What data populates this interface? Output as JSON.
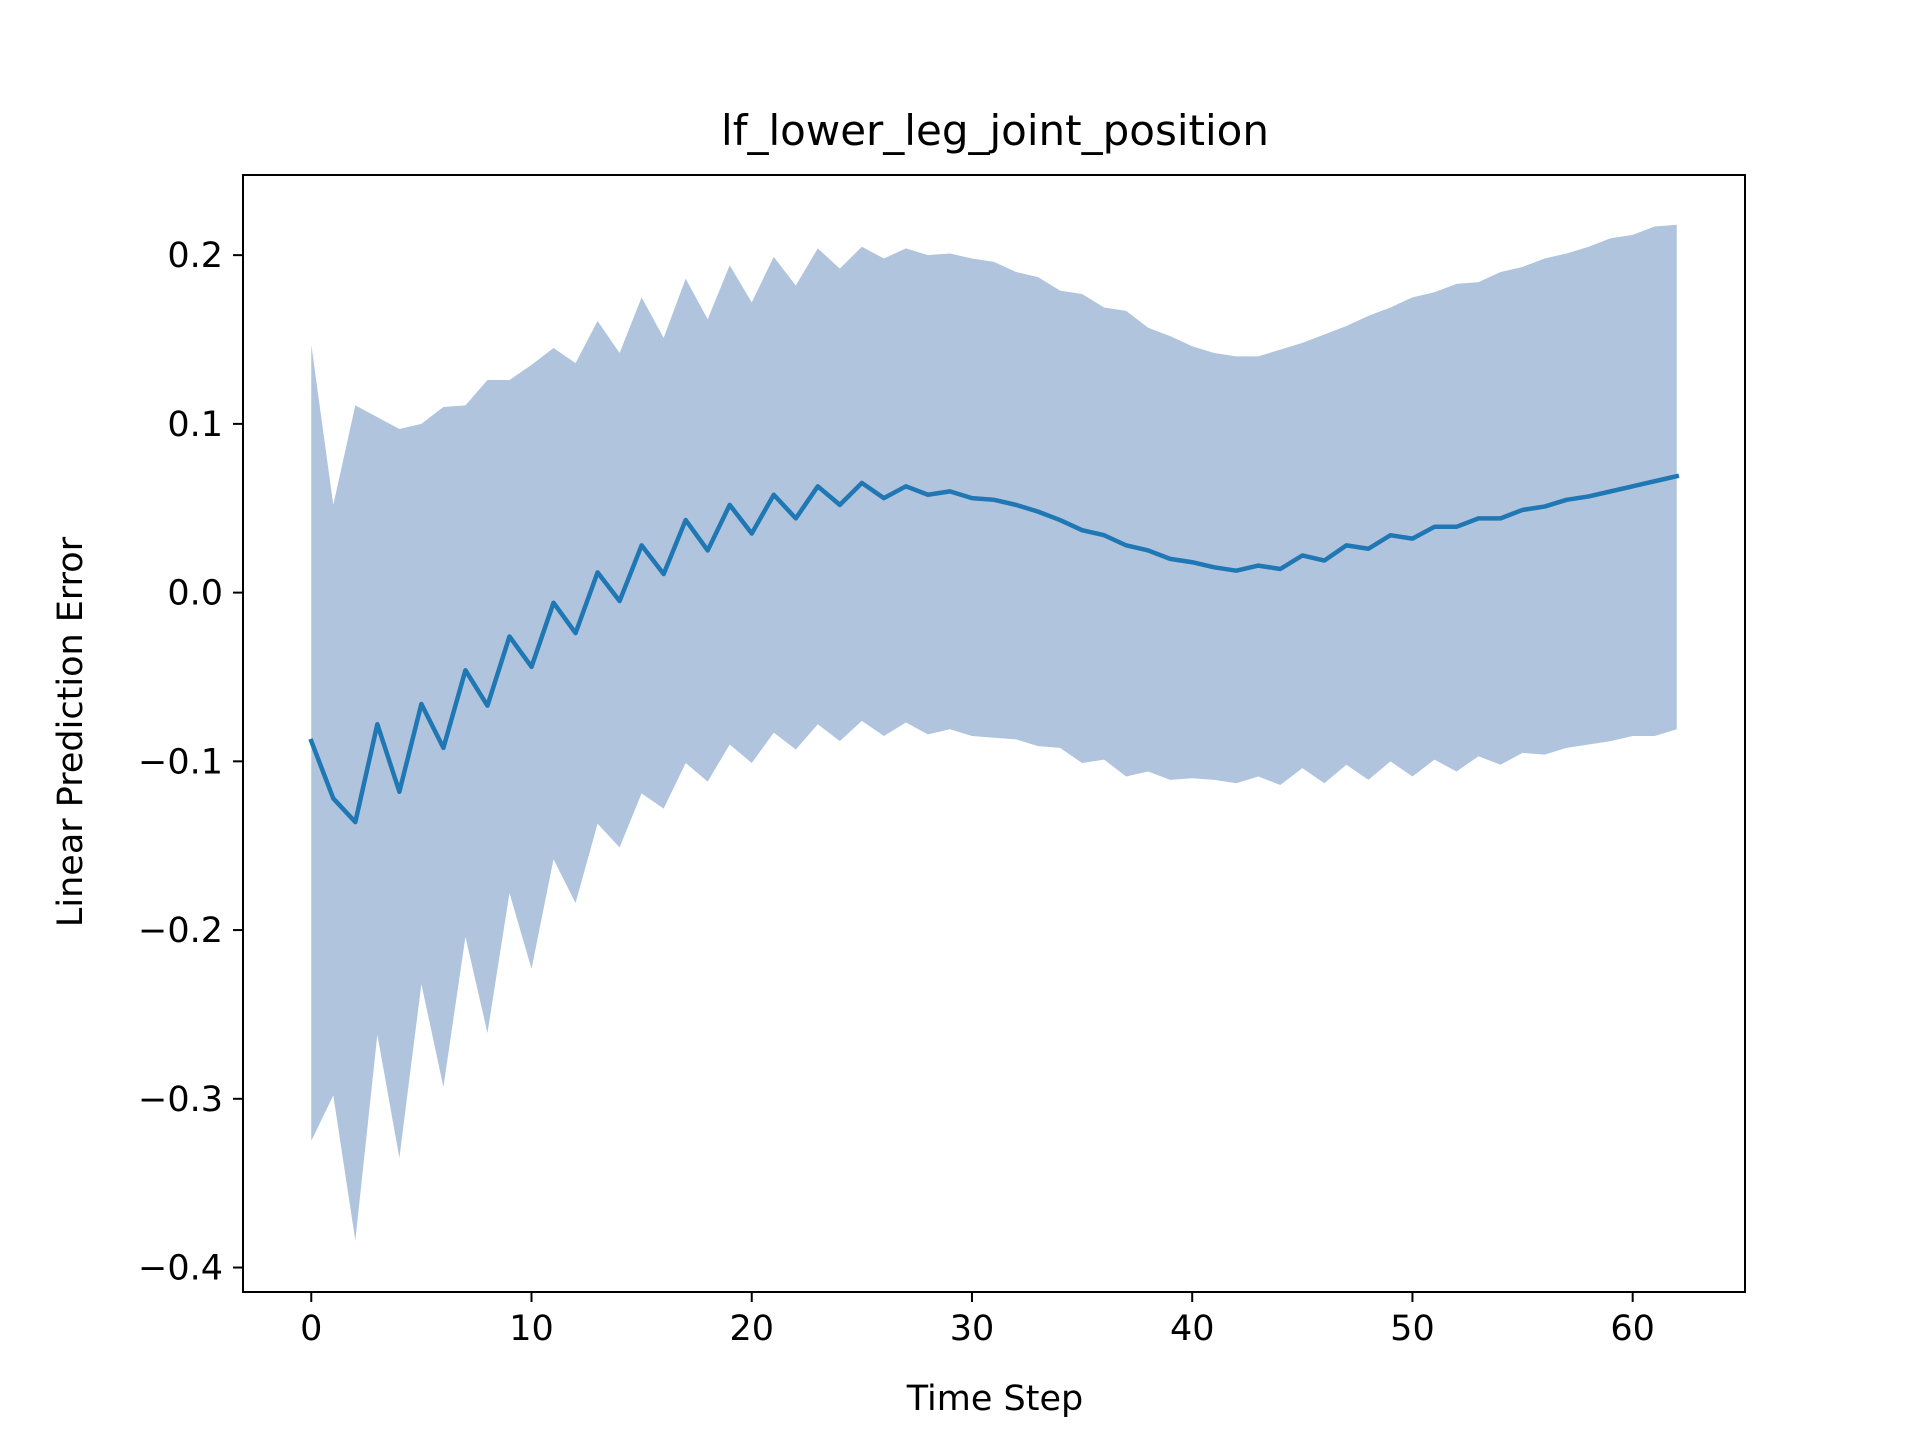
{
  "chart_data": {
    "type": "line",
    "title": "lf_lower_leg_joint_position",
    "xlabel": "Time Step",
    "ylabel": "Linear Prediction Error",
    "xlim": [
      -3.1,
      65.1
    ],
    "ylim": [
      -0.4145,
      0.2475
    ],
    "xticks": [
      0,
      10,
      20,
      30,
      40,
      50,
      60
    ],
    "xtick_labels": [
      "0",
      "10",
      "20",
      "30",
      "40",
      "50",
      "60"
    ],
    "yticks": [
      -0.4,
      -0.3,
      -0.2,
      -0.1,
      0.0,
      0.1,
      0.2
    ],
    "ytick_labels": [
      "−0.4",
      "−0.3",
      "−0.2",
      "−0.1",
      "0.0",
      "0.1",
      "0.2"
    ],
    "grid": false,
    "colors": {
      "line": "#1f77b4",
      "band": "#b0c4de"
    },
    "x": [
      0,
      1,
      2,
      3,
      4,
      5,
      6,
      7,
      8,
      9,
      10,
      11,
      12,
      13,
      14,
      15,
      16,
      17,
      18,
      19,
      20,
      21,
      22,
      23,
      24,
      25,
      26,
      27,
      28,
      29,
      30,
      31,
      32,
      33,
      34,
      35,
      36,
      37,
      38,
      39,
      40,
      41,
      42,
      43,
      44,
      45,
      46,
      47,
      48,
      49,
      50,
      51,
      52,
      53,
      54,
      55,
      56,
      57,
      58,
      59,
      60,
      61,
      62
    ],
    "series": [
      {
        "type": "band",
        "upper": [
          0.147,
          0.052,
          0.111,
          0.104,
          0.097,
          0.1,
          0.11,
          0.111,
          0.126,
          0.126,
          0.135,
          0.145,
          0.136,
          0.161,
          0.142,
          0.175,
          0.151,
          0.186,
          0.162,
          0.194,
          0.172,
          0.199,
          0.182,
          0.204,
          0.192,
          0.205,
          0.198,
          0.204,
          0.2,
          0.201,
          0.198,
          0.196,
          0.19,
          0.187,
          0.179,
          0.177,
          0.169,
          0.167,
          0.157,
          0.152,
          0.146,
          0.142,
          0.14,
          0.14,
          0.144,
          0.148,
          0.153,
          0.158,
          0.164,
          0.169,
          0.175,
          0.178,
          0.183,
          0.184,
          0.19,
          0.193,
          0.198,
          0.201,
          0.205,
          0.21,
          0.212,
          0.217,
          0.218
        ],
        "lower": [
          -0.325,
          -0.298,
          -0.384,
          -0.262,
          -0.335,
          -0.232,
          -0.293,
          -0.204,
          -0.261,
          -0.178,
          -0.223,
          -0.158,
          -0.184,
          -0.137,
          -0.151,
          -0.119,
          -0.128,
          -0.101,
          -0.112,
          -0.09,
          -0.101,
          -0.083,
          -0.093,
          -0.078,
          -0.088,
          -0.076,
          -0.085,
          -0.077,
          -0.084,
          -0.081,
          -0.085,
          -0.086,
          -0.087,
          -0.091,
          -0.092,
          -0.101,
          -0.099,
          -0.109,
          -0.106,
          -0.111,
          -0.11,
          -0.111,
          -0.113,
          -0.109,
          -0.114,
          -0.104,
          -0.113,
          -0.102,
          -0.111,
          -0.1,
          -0.109,
          -0.099,
          -0.106,
          -0.097,
          -0.102,
          -0.095,
          -0.096,
          -0.092,
          -0.09,
          -0.088,
          -0.085,
          -0.085,
          -0.081
        ]
      },
      {
        "type": "line",
        "values": [
          -0.088,
          -0.122,
          -0.136,
          -0.078,
          -0.118,
          -0.066,
          -0.092,
          -0.046,
          -0.067,
          -0.026,
          -0.044,
          -0.006,
          -0.024,
          0.012,
          -0.005,
          0.028,
          0.011,
          0.043,
          0.025,
          0.052,
          0.035,
          0.058,
          0.044,
          0.063,
          0.052,
          0.065,
          0.056,
          0.063,
          0.058,
          0.06,
          0.056,
          0.055,
          0.052,
          0.048,
          0.043,
          0.037,
          0.034,
          0.028,
          0.025,
          0.02,
          0.018,
          0.015,
          0.013,
          0.016,
          0.014,
          0.022,
          0.019,
          0.028,
          0.026,
          0.034,
          0.032,
          0.039,
          0.039,
          0.044,
          0.044,
          0.049,
          0.051,
          0.055,
          0.057,
          0.06,
          0.063,
          0.066,
          0.069
        ]
      }
    ]
  }
}
